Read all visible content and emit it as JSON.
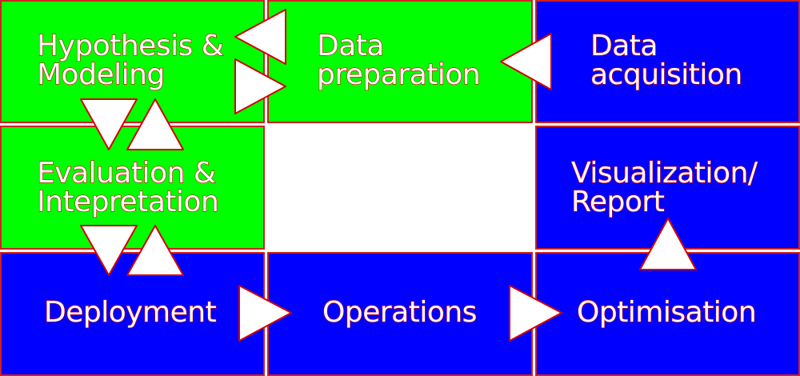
{
  "colors": {
    "green": "#00ff00",
    "blue": "#0000ff",
    "border": "#cc2222",
    "arrow_fill": "#ffffff",
    "arrow_stroke": "#d40000"
  },
  "steps": {
    "hypothesis": {
      "line1": "Hypothesis &",
      "line2": "Modeling"
    },
    "preparation": {
      "line1": "Data",
      "line2": "preparation"
    },
    "acquisition": {
      "line1": "Data",
      "line2": "acquisition"
    },
    "evaluation": {
      "line1": "Evaluation &",
      "line2": "Intepretation"
    },
    "visualization": {
      "line1": "Visualization/",
      "line2": "Report"
    },
    "deployment": {
      "label": "Deployment"
    },
    "operations": {
      "label": "Operations"
    },
    "optimisation": {
      "label": "Optimisation"
    }
  }
}
